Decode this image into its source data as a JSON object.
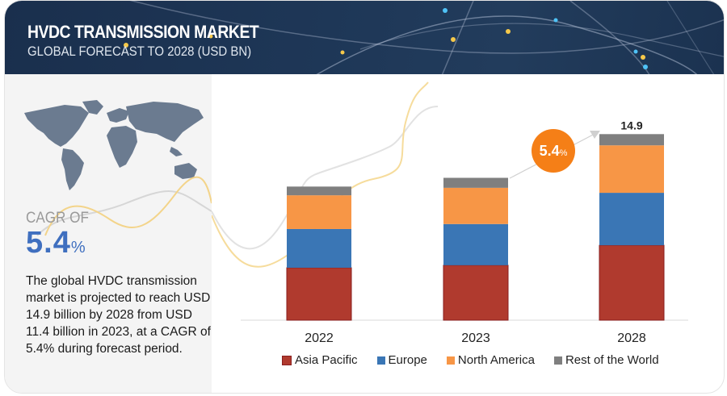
{
  "header": {
    "title": "HVDC TRANSMISSION MARKET",
    "subtitle": "GLOBAL FORECAST TO 2028 (USD BN)"
  },
  "summary": {
    "cagr_label": "CAGR OF",
    "cagr_value": "5.4",
    "cagr_unit": "%",
    "description": "The global HVDC transmission market is projected to reach USD 14.9 billion by 2028 from USD 11.4 billion in 2023, at a CAGR of 5.4% during forecast period."
  },
  "growth_bubble": {
    "value": "5.4",
    "unit": "%"
  },
  "colors": {
    "asia_pacific": "#b03a2e",
    "europe": "#3a76b5",
    "north_america": "#f79646",
    "rest_of_world": "#7f7f7f",
    "bubble": "#f57f17",
    "cagr_text": "#3f6fbf"
  },
  "chart_data": {
    "type": "bar",
    "stacked": true,
    "title": "HVDC TRANSMISSION MARKET",
    "subtitle": "GLOBAL FORECAST TO 2028 (USD BN)",
    "xlabel": "",
    "ylabel": "",
    "categories": [
      "2022",
      "2023",
      "2028"
    ],
    "series": [
      {
        "name": "Asia Pacific",
        "color": "#b03a2e",
        "values": [
          4.2,
          4.4,
          6.0
        ]
      },
      {
        "name": "Europe",
        "color": "#3a76b5",
        "values": [
          3.1,
          3.3,
          4.2
        ]
      },
      {
        "name": "North America",
        "color": "#f79646",
        "values": [
          2.7,
          2.9,
          3.8
        ]
      },
      {
        "name": "Rest of the World",
        "color": "#7f7f7f",
        "values": [
          0.7,
          0.8,
          0.9
        ]
      }
    ],
    "totals": [
      10.7,
      11.4,
      14.9
    ],
    "data_labels": [
      null,
      null,
      "14.9"
    ],
    "ylim": [
      0,
      15.5
    ],
    "grid": false,
    "legend_position": "bottom",
    "annotation": {
      "text": "5.4%",
      "label": "CAGR",
      "from": "2023",
      "to": "2028"
    }
  }
}
